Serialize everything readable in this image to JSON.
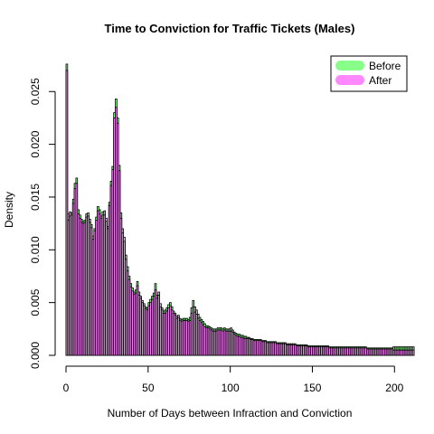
{
  "chart_data": {
    "type": "bar",
    "title": "Time to Conviction for Traffic Tickets (Males)",
    "xlabel": "Number of Days between Infraction and Conviction",
    "ylabel": "Density",
    "xlim": [
      0,
      208
    ],
    "ylim": [
      0,
      0.0275
    ],
    "x_ticks": [
      0,
      50,
      100,
      150,
      200
    ],
    "x_tick_labels": [
      "0",
      "50",
      "100",
      "150",
      "200"
    ],
    "y_ticks": [
      0.0,
      0.005,
      0.01,
      0.015,
      0.02,
      0.025
    ],
    "y_tick_labels": [
      "0.000",
      "0.005",
      "0.010",
      "0.015",
      "0.020",
      "0.025"
    ],
    "bin_width": 1,
    "legend": {
      "position": "top-right"
    },
    "series": [
      {
        "name": "Before",
        "color": "#88ff88",
        "values": [
          0.0276,
          0.0134,
          0.0136,
          0.0135,
          0.0148,
          0.0163,
          0.0168,
          0.0138,
          0.0133,
          0.0129,
          0.0127,
          0.0128,
          0.0134,
          0.0135,
          0.0129,
          0.0124,
          0.0113,
          0.012,
          0.0131,
          0.0141,
          0.0138,
          0.0132,
          0.0136,
          0.0137,
          0.013,
          0.0122,
          0.0145,
          0.0165,
          0.0179,
          0.023,
          0.0243,
          0.0225,
          0.018,
          0.0135,
          0.012,
          0.0112,
          0.0095,
          0.0084,
          0.0075,
          0.0068,
          0.0064,
          0.006,
          0.0062,
          0.007,
          0.006,
          0.0056,
          0.0052,
          0.0049,
          0.0046,
          0.0045,
          0.005,
          0.0053,
          0.0056,
          0.0059,
          0.0068,
          0.0057,
          0.006,
          0.0049,
          0.0045,
          0.0042,
          0.0043,
          0.0045,
          0.0048,
          0.005,
          0.0046,
          0.0042,
          0.004,
          0.0037,
          0.0038,
          0.0035,
          0.0034,
          0.0035,
          0.0035,
          0.0035,
          0.0034,
          0.0036,
          0.0045,
          0.0052,
          0.0046,
          0.0043,
          0.0039,
          0.0036,
          0.0034,
          0.0032,
          0.003,
          0.0028,
          0.0028,
          0.0027,
          0.0026,
          0.0025,
          0.0025,
          0.0025,
          0.0026,
          0.0026,
          0.0026,
          0.0025,
          0.0026,
          0.0025,
          0.0025,
          0.0025,
          0.0026,
          0.0024,
          0.0022,
          0.0021,
          0.002,
          0.002,
          0.0019,
          0.0019,
          0.0018,
          0.0018,
          0.0017,
          0.0017,
          0.0016,
          0.0016,
          0.0015,
          0.0015,
          0.0015,
          0.0015,
          0.0015,
          0.0014,
          0.0014,
          0.0014,
          0.0013,
          0.0013,
          0.0013,
          0.0013,
          0.0013,
          0.0013,
          0.0012,
          0.0012,
          0.0012,
          0.0012,
          0.0012,
          0.0012,
          0.0011,
          0.0011,
          0.0011,
          0.0011,
          0.0011,
          0.0011,
          0.001,
          0.001,
          0.001,
          0.001,
          0.001,
          0.001,
          0.001,
          0.0009,
          0.0009,
          0.0009,
          0.0009,
          0.0009,
          0.0009,
          0.0009,
          0.0009,
          0.0009,
          0.0009,
          0.0009,
          0.0009,
          0.0009,
          0.0008,
          0.0008,
          0.0008,
          0.0008,
          0.0008,
          0.0008,
          0.0008,
          0.0008,
          0.0008,
          0.0008,
          0.0008,
          0.0008,
          0.0008,
          0.0008,
          0.0008,
          0.0008,
          0.0008,
          0.0008,
          0.0008,
          0.0008,
          0.0008,
          0.0008,
          0.0008,
          0.0007,
          0.0007,
          0.0007,
          0.0007,
          0.0007,
          0.0007,
          0.0007,
          0.0007,
          0.0007,
          0.0007,
          0.0007,
          0.0007,
          0.0007,
          0.0007,
          0.0007,
          0.0007,
          0.0008,
          0.0008,
          0.0008,
          0.0008,
          0.0008,
          0.0008,
          0.0008,
          0.0008,
          0.0008,
          0.0008,
          0.0008,
          0.0008,
          0.0008
        ]
      },
      {
        "name": "After",
        "color": "#ff88ff",
        "values": [
          0.027,
          0.0128,
          0.0132,
          0.0133,
          0.0144,
          0.0158,
          0.0163,
          0.0134,
          0.013,
          0.0126,
          0.0125,
          0.0126,
          0.0131,
          0.0132,
          0.0126,
          0.0121,
          0.011,
          0.0118,
          0.0128,
          0.0137,
          0.0134,
          0.013,
          0.0133,
          0.0133,
          0.0127,
          0.012,
          0.0142,
          0.0161,
          0.0176,
          0.0225,
          0.0235,
          0.022,
          0.0175,
          0.013,
          0.0116,
          0.0108,
          0.0091,
          0.008,
          0.0072,
          0.0065,
          0.0061,
          0.0058,
          0.0059,
          0.0066,
          0.0057,
          0.0054,
          0.005,
          0.0047,
          0.0044,
          0.0043,
          0.0047,
          0.005,
          0.0053,
          0.0056,
          0.0062,
          0.0054,
          0.0057,
          0.0046,
          0.0043,
          0.004,
          0.004,
          0.0042,
          0.0045,
          0.0047,
          0.0043,
          0.004,
          0.0038,
          0.0035,
          0.0036,
          0.0033,
          0.0032,
          0.0033,
          0.0033,
          0.0033,
          0.0032,
          0.0033,
          0.004,
          0.0046,
          0.0041,
          0.0039,
          0.0035,
          0.0033,
          0.0031,
          0.0029,
          0.0027,
          0.0026,
          0.0026,
          0.0025,
          0.0024,
          0.0023,
          0.0023,
          0.0023,
          0.0024,
          0.0024,
          0.0024,
          0.0023,
          0.0024,
          0.0023,
          0.0023,
          0.0023,
          0.0023,
          0.0022,
          0.002,
          0.0019,
          0.0018,
          0.0018,
          0.0017,
          0.0017,
          0.0016,
          0.0016,
          0.0016,
          0.0016,
          0.0015,
          0.0015,
          0.0014,
          0.0014,
          0.0014,
          0.0014,
          0.0014,
          0.0013,
          0.0013,
          0.0013,
          0.0012,
          0.0012,
          0.0012,
          0.0012,
          0.0012,
          0.0012,
          0.0011,
          0.0011,
          0.0011,
          0.0011,
          0.0011,
          0.0011,
          0.001,
          0.001,
          0.001,
          0.001,
          0.001,
          0.001,
          0.0009,
          0.0009,
          0.0009,
          0.0009,
          0.0009,
          0.0009,
          0.0009,
          0.0008,
          0.0008,
          0.0008,
          0.0008,
          0.0008,
          0.0008,
          0.0008,
          0.0008,
          0.0008,
          0.0008,
          0.0008,
          0.0008,
          0.0008,
          0.0007,
          0.0007,
          0.0007,
          0.0007,
          0.0007,
          0.0007,
          0.0007,
          0.0007,
          0.0007,
          0.0007,
          0.0007,
          0.0007,
          0.0007,
          0.0007,
          0.0007,
          0.0007,
          0.0007,
          0.0007,
          0.0007,
          0.0007,
          0.0007,
          0.0007,
          0.0007,
          0.0006,
          0.0006,
          0.0006,
          0.0006,
          0.0006,
          0.0006,
          0.0006,
          0.0006,
          0.0006,
          0.0006,
          0.0006,
          0.0006,
          0.0006,
          0.0006,
          0.0006,
          0.0006,
          0.0005,
          0.0005,
          0.0005,
          0.0005,
          0.0005,
          0.0005,
          0.0005,
          0.0005,
          0.0005,
          0.0005,
          0.0005,
          0.0005,
          0.0005
        ]
      }
    ]
  }
}
